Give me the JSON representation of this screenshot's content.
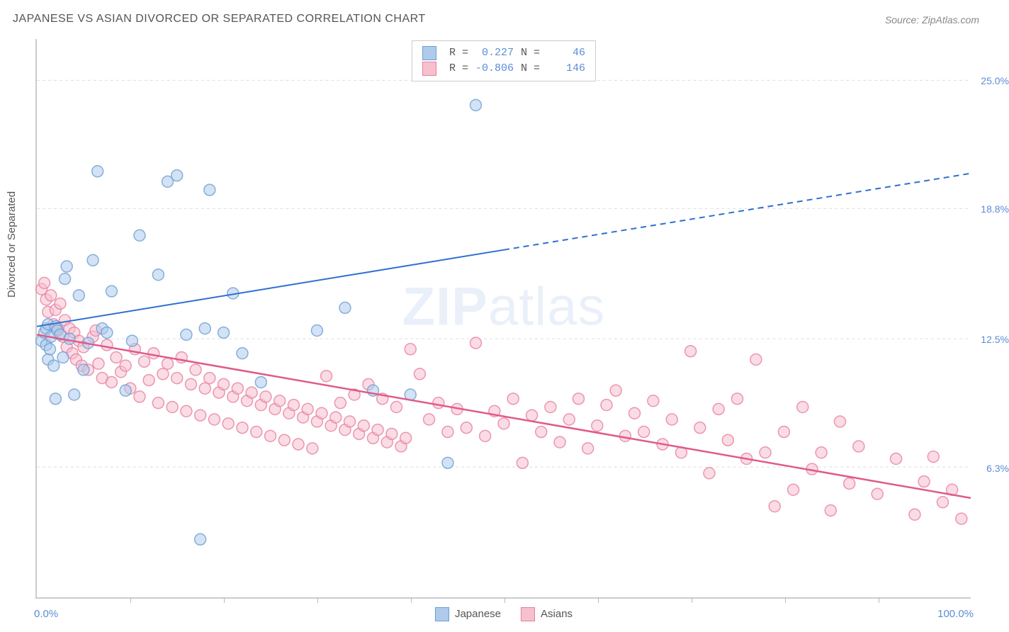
{
  "title": "JAPANESE VS ASIAN DIVORCED OR SEPARATED CORRELATION CHART",
  "source": "Source: ZipAtlas.com",
  "ylabel": "Divorced or Separated",
  "watermark_bold": "ZIP",
  "watermark_light": "atlas",
  "chart": {
    "type": "scatter",
    "xlim": [
      0,
      100
    ],
    "ylim": [
      0,
      27
    ],
    "x_min_label": "0.0%",
    "x_max_label": "100.0%",
    "x_ticks": [
      10,
      20,
      30,
      40,
      50,
      60,
      70,
      80,
      90
    ],
    "y_gridlines": [
      {
        "value": 6.3,
        "label": "6.3%"
      },
      {
        "value": 12.5,
        "label": "12.5%"
      },
      {
        "value": 18.8,
        "label": "18.8%"
      },
      {
        "value": 25.0,
        "label": "25.0%"
      }
    ],
    "grid_color": "#dddddd",
    "axis_color": "#cccccc",
    "tick_label_color": "#5b8dd6",
    "background_color": "#ffffff",
    "marker_radius": 8,
    "marker_stroke_width": 1.5,
    "series": [
      {
        "name": "Japanese",
        "fill": "#aecbeb",
        "stroke": "#6a9fd4",
        "line_color": "#2e6fd1",
        "line_width": 2,
        "line_dash_after_x": 50,
        "regression": {
          "y_at_x0": 13.1,
          "y_at_x100": 20.5
        },
        "R": 0.227,
        "N": 46,
        "points": [
          [
            0.5,
            12.4
          ],
          [
            0.8,
            12.8
          ],
          [
            1.0,
            12.2
          ],
          [
            1.0,
            13.0
          ],
          [
            1.2,
            11.5
          ],
          [
            1.2,
            13.2
          ],
          [
            1.4,
            12.0
          ],
          [
            1.5,
            12.6
          ],
          [
            1.8,
            11.2
          ],
          [
            2.0,
            13.1
          ],
          [
            2.0,
            9.6
          ],
          [
            2.2,
            12.9
          ],
          [
            2.5,
            12.7
          ],
          [
            2.8,
            11.6
          ],
          [
            3.0,
            15.4
          ],
          [
            3.2,
            16.0
          ],
          [
            3.5,
            12.5
          ],
          [
            4.0,
            9.8
          ],
          [
            4.5,
            14.6
          ],
          [
            5.0,
            11.0
          ],
          [
            5.5,
            12.3
          ],
          [
            6.0,
            16.3
          ],
          [
            6.5,
            20.6
          ],
          [
            7.0,
            13.0
          ],
          [
            7.5,
            12.8
          ],
          [
            8.0,
            14.8
          ],
          [
            9.5,
            10.0
          ],
          [
            10.2,
            12.4
          ],
          [
            11.0,
            17.5
          ],
          [
            13.0,
            15.6
          ],
          [
            14.0,
            20.1
          ],
          [
            15.0,
            20.4
          ],
          [
            16.0,
            12.7
          ],
          [
            17.5,
            2.8
          ],
          [
            18.0,
            13.0
          ],
          [
            18.5,
            19.7
          ],
          [
            20.0,
            12.8
          ],
          [
            21.0,
            14.7
          ],
          [
            22.0,
            11.8
          ],
          [
            24.0,
            10.4
          ],
          [
            30.0,
            12.9
          ],
          [
            33.0,
            14.0
          ],
          [
            36.0,
            10.0
          ],
          [
            40.0,
            9.8
          ],
          [
            44.0,
            6.5
          ],
          [
            47.0,
            23.8
          ]
        ]
      },
      {
        "name": "Asians",
        "fill": "#f6c0cd",
        "stroke": "#e97ea0",
        "line_color": "#e05a8a",
        "line_width": 2.5,
        "line_dash_after_x": 200,
        "regression": {
          "y_at_x0": 12.7,
          "y_at_x100": 4.8
        },
        "R": -0.806,
        "N": 146,
        "points": [
          [
            0.5,
            14.9
          ],
          [
            0.8,
            15.2
          ],
          [
            1.0,
            14.4
          ],
          [
            1.2,
            13.8
          ],
          [
            1.5,
            14.6
          ],
          [
            1.8,
            13.2
          ],
          [
            2.0,
            13.9
          ],
          [
            2.2,
            13.0
          ],
          [
            2.5,
            14.2
          ],
          [
            2.8,
            12.6
          ],
          [
            3.0,
            13.4
          ],
          [
            3.2,
            12.1
          ],
          [
            3.5,
            13.0
          ],
          [
            3.8,
            11.8
          ],
          [
            4.0,
            12.8
          ],
          [
            4.2,
            11.5
          ],
          [
            4.5,
            12.4
          ],
          [
            4.8,
            11.2
          ],
          [
            5.0,
            12.1
          ],
          [
            5.5,
            11.0
          ],
          [
            6.0,
            12.6
          ],
          [
            6.3,
            12.9
          ],
          [
            6.6,
            11.3
          ],
          [
            7.0,
            10.6
          ],
          [
            7.5,
            12.2
          ],
          [
            8.0,
            10.4
          ],
          [
            8.5,
            11.6
          ],
          [
            9.0,
            10.9
          ],
          [
            9.5,
            11.2
          ],
          [
            10.0,
            10.1
          ],
          [
            10.5,
            12.0
          ],
          [
            11.0,
            9.7
          ],
          [
            11.5,
            11.4
          ],
          [
            12.0,
            10.5
          ],
          [
            12.5,
            11.8
          ],
          [
            13.0,
            9.4
          ],
          [
            13.5,
            10.8
          ],
          [
            14.0,
            11.3
          ],
          [
            14.5,
            9.2
          ],
          [
            15.0,
            10.6
          ],
          [
            15.5,
            11.6
          ],
          [
            16.0,
            9.0
          ],
          [
            16.5,
            10.3
          ],
          [
            17.0,
            11.0
          ],
          [
            17.5,
            8.8
          ],
          [
            18.0,
            10.1
          ],
          [
            18.5,
            10.6
          ],
          [
            19.0,
            8.6
          ],
          [
            19.5,
            9.9
          ],
          [
            20.0,
            10.3
          ],
          [
            20.5,
            8.4
          ],
          [
            21.0,
            9.7
          ],
          [
            21.5,
            10.1
          ],
          [
            22.0,
            8.2
          ],
          [
            22.5,
            9.5
          ],
          [
            23.0,
            9.9
          ],
          [
            23.5,
            8.0
          ],
          [
            24.0,
            9.3
          ],
          [
            24.5,
            9.7
          ],
          [
            25.0,
            7.8
          ],
          [
            25.5,
            9.1
          ],
          [
            26.0,
            9.5
          ],
          [
            26.5,
            7.6
          ],
          [
            27.0,
            8.9
          ],
          [
            27.5,
            9.3
          ],
          [
            28.0,
            7.4
          ],
          [
            28.5,
            8.7
          ],
          [
            29.0,
            9.1
          ],
          [
            29.5,
            7.2
          ],
          [
            30.0,
            8.5
          ],
          [
            30.5,
            8.9
          ],
          [
            31.0,
            10.7
          ],
          [
            31.5,
            8.3
          ],
          [
            32.0,
            8.7
          ],
          [
            32.5,
            9.4
          ],
          [
            33.0,
            8.1
          ],
          [
            33.5,
            8.5
          ],
          [
            34.0,
            9.8
          ],
          [
            34.5,
            7.9
          ],
          [
            35.0,
            8.3
          ],
          [
            35.5,
            10.3
          ],
          [
            36.0,
            7.7
          ],
          [
            36.5,
            8.1
          ],
          [
            37.0,
            9.6
          ],
          [
            37.5,
            7.5
          ],
          [
            38.0,
            7.9
          ],
          [
            38.5,
            9.2
          ],
          [
            39.0,
            7.3
          ],
          [
            39.5,
            7.7
          ],
          [
            40.0,
            12.0
          ],
          [
            41.0,
            10.8
          ],
          [
            42.0,
            8.6
          ],
          [
            43.0,
            9.4
          ],
          [
            44.0,
            8.0
          ],
          [
            45.0,
            9.1
          ],
          [
            46.0,
            8.2
          ],
          [
            47.0,
            12.3
          ],
          [
            48.0,
            7.8
          ],
          [
            49.0,
            9.0
          ],
          [
            50.0,
            8.4
          ],
          [
            51.0,
            9.6
          ],
          [
            52.0,
            6.5
          ],
          [
            53.0,
            8.8
          ],
          [
            54.0,
            8.0
          ],
          [
            55.0,
            9.2
          ],
          [
            56.0,
            7.5
          ],
          [
            57.0,
            8.6
          ],
          [
            58.0,
            9.6
          ],
          [
            59.0,
            7.2
          ],
          [
            60.0,
            8.3
          ],
          [
            61.0,
            9.3
          ],
          [
            62.0,
            10.0
          ],
          [
            63.0,
            7.8
          ],
          [
            64.0,
            8.9
          ],
          [
            65.0,
            8.0
          ],
          [
            66.0,
            9.5
          ],
          [
            67.0,
            7.4
          ],
          [
            68.0,
            8.6
          ],
          [
            69.0,
            7.0
          ],
          [
            70.0,
            11.9
          ],
          [
            71.0,
            8.2
          ],
          [
            72.0,
            6.0
          ],
          [
            73.0,
            9.1
          ],
          [
            74.0,
            7.6
          ],
          [
            75.0,
            9.6
          ],
          [
            76.0,
            6.7
          ],
          [
            77.0,
            11.5
          ],
          [
            78.0,
            7.0
          ],
          [
            79.0,
            4.4
          ],
          [
            80.0,
            8.0
          ],
          [
            81.0,
            5.2
          ],
          [
            82.0,
            9.2
          ],
          [
            83.0,
            6.2
          ],
          [
            84.0,
            7.0
          ],
          [
            85.0,
            4.2
          ],
          [
            86.0,
            8.5
          ],
          [
            87.0,
            5.5
          ],
          [
            88.0,
            7.3
          ],
          [
            90.0,
            5.0
          ],
          [
            92.0,
            6.7
          ],
          [
            94.0,
            4.0
          ],
          [
            95.0,
            5.6
          ],
          [
            96.0,
            6.8
          ],
          [
            97.0,
            4.6
          ],
          [
            98.0,
            5.2
          ],
          [
            99.0,
            3.8
          ]
        ]
      }
    ],
    "stats_labels": {
      "R": "R =",
      "N": "N ="
    }
  },
  "bottom_legend": [
    {
      "label": "Japanese",
      "fill": "#aecbeb",
      "stroke": "#6a9fd4"
    },
    {
      "label": "Asians",
      "fill": "#f6c0cd",
      "stroke": "#e97ea0"
    }
  ]
}
